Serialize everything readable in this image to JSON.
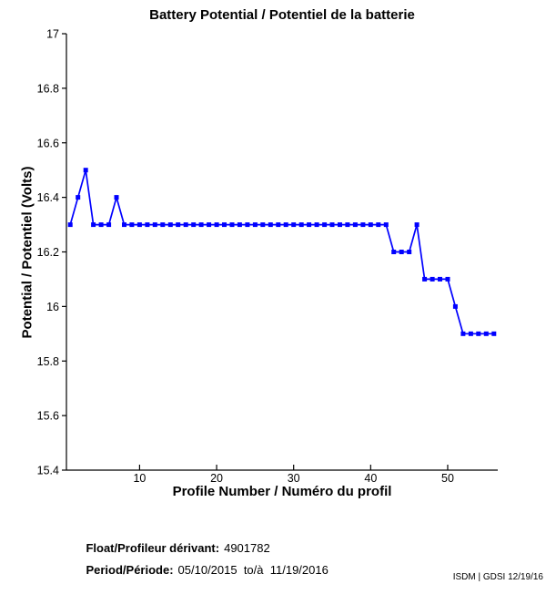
{
  "chart_data": {
    "type": "line",
    "title": "Battery Potential / Potentiel de la batterie",
    "xlabel": "Profile Number / Numéro du profil",
    "ylabel": "Potential / Potentiel (Volts)",
    "series_name": "battery-potential",
    "x": [
      1,
      2,
      3,
      4,
      5,
      6,
      7,
      8,
      9,
      10,
      11,
      12,
      13,
      14,
      15,
      16,
      17,
      18,
      19,
      20,
      21,
      22,
      23,
      24,
      25,
      26,
      27,
      28,
      29,
      30,
      31,
      32,
      33,
      34,
      35,
      36,
      37,
      38,
      39,
      40,
      41,
      42,
      43,
      44,
      45,
      46,
      47,
      48,
      49,
      50,
      51,
      52,
      53,
      54,
      55,
      56
    ],
    "values": [
      16.3,
      16.4,
      16.5,
      16.3,
      16.3,
      16.3,
      16.4,
      16.3,
      16.3,
      16.3,
      16.3,
      16.3,
      16.3,
      16.3,
      16.3,
      16.3,
      16.3,
      16.3,
      16.3,
      16.3,
      16.3,
      16.3,
      16.3,
      16.3,
      16.3,
      16.3,
      16.3,
      16.3,
      16.3,
      16.3,
      16.3,
      16.3,
      16.3,
      16.3,
      16.3,
      16.3,
      16.3,
      16.3,
      16.3,
      16.3,
      16.3,
      16.3,
      16.2,
      16.2,
      16.2,
      16.3,
      16.1,
      16.1,
      16.1,
      16.1,
      16.0,
      15.9,
      15.9,
      15.9,
      15.9,
      15.9
    ],
    "xlim": [
      0.5,
      56.5
    ],
    "ylim": [
      15.4,
      17
    ],
    "xticks": [
      10,
      20,
      30,
      40,
      50
    ],
    "xtick_labels": [
      "10",
      "20",
      "30",
      "40",
      "50"
    ],
    "yticks": [
      17,
      16.8,
      16.6,
      16.4,
      16.2,
      16,
      15.8,
      15.6,
      15.4
    ],
    "ytick_labels": [
      "17",
      "16.8",
      "16.6",
      "16.4",
      "16.2",
      "16",
      "15.8",
      "15.6",
      "15.4"
    ],
    "line_color": "#0000ff",
    "axis_color": "#000000",
    "marker": "filled-square",
    "grid": false,
    "legend": null
  },
  "footer": {
    "float_label": "Float/Profileur dérivant:",
    "float_value": "4901782",
    "period_label": "Period/Période:",
    "period_value": "05/10/2015  to/à  11/19/2016"
  },
  "corner_note": "ISDM | GDSI 12/19/16"
}
